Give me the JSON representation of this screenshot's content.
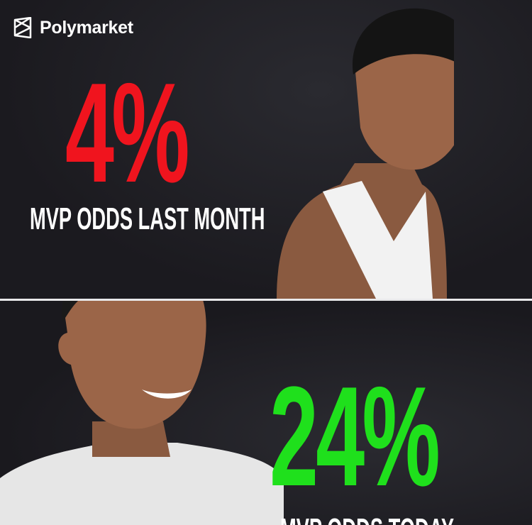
{
  "brand": {
    "name": "Polymarket",
    "icon": "polymarket-logo-icon"
  },
  "top_panel": {
    "value": "4%",
    "caption": "MVP ODDS LAST MONTH",
    "color": "#f0141e"
  },
  "bottom_panel": {
    "value": "24%",
    "caption": "MVP ODDS TODAY",
    "color": "#1fe01c"
  }
}
